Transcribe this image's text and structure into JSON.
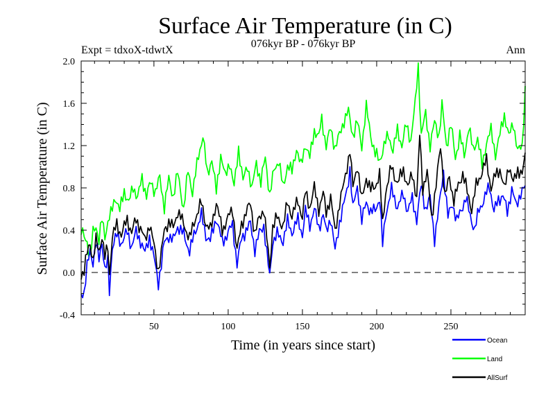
{
  "chart_data": {
    "type": "line",
    "title": "Surface Air Temperature (in C)",
    "subtitle": "076kyr BP - 076kyr BP",
    "expt_label": "Expt = tdxoX-tdwtX",
    "period_label": "Ann",
    "xlabel": "Time (in years since start)",
    "ylabel": "Surface Air Temperature (in C)",
    "xlim": [
      1,
      300
    ],
    "ylim": [
      -0.4,
      2.0
    ],
    "x_ticks": [
      50,
      100,
      150,
      200,
      250
    ],
    "x_tick_labels": [
      "50",
      "100",
      "150",
      "200",
      "250"
    ],
    "y_ticks": [
      -0.4,
      0.0,
      0.4,
      0.8,
      1.2,
      1.6,
      2.0
    ],
    "y_tick_labels": [
      "-0.4",
      "0.0",
      "0.4",
      "0.8",
      "1.2",
      "1.6",
      "2.0"
    ],
    "reference_line": 0.0,
    "legend_position": "bottom-right",
    "series": [
      {
        "name": "Ocean",
        "color": "#0000ff",
        "keypoints": [
          [
            1,
            -0.2
          ],
          [
            3,
            -0.18
          ],
          [
            5,
            0.05
          ],
          [
            7,
            0.2
          ],
          [
            9,
            0.1
          ],
          [
            11,
            0.28
          ],
          [
            13,
            0.12
          ],
          [
            15,
            0.3
          ],
          [
            17,
            0.02
          ],
          [
            19,
            0.1
          ],
          [
            20,
            -0.18
          ],
          [
            22,
            0.25
          ],
          [
            25,
            0.35
          ],
          [
            28,
            0.28
          ],
          [
            32,
            0.38
          ],
          [
            35,
            0.25
          ],
          [
            38,
            0.38
          ],
          [
            41,
            0.3
          ],
          [
            44,
            0.18
          ],
          [
            47,
            0.34
          ],
          [
            50,
            0.14
          ],
          [
            53,
            -0.1
          ],
          [
            55,
            0.08
          ],
          [
            57,
            0.28
          ],
          [
            60,
            0.35
          ],
          [
            63,
            0.3
          ],
          [
            66,
            0.44
          ],
          [
            70,
            0.36
          ],
          [
            74,
            0.2
          ],
          [
            78,
            0.4
          ],
          [
            82,
            0.54
          ],
          [
            85,
            0.35
          ],
          [
            88,
            0.3
          ],
          [
            92,
            0.52
          ],
          [
            96,
            0.28
          ],
          [
            100,
            0.38
          ],
          [
            103,
            0.45
          ],
          [
            106,
            0.08
          ],
          [
            109,
            0.32
          ],
          [
            112,
            0.4
          ],
          [
            115,
            0.46
          ],
          [
            118,
            0.22
          ],
          [
            121,
            0.37
          ],
          [
            124,
            0.45
          ],
          [
            126,
            0.18
          ],
          [
            128,
            -0.04
          ],
          [
            130,
            0.3
          ],
          [
            133,
            0.36
          ],
          [
            137,
            0.3
          ],
          [
            140,
            0.48
          ],
          [
            143,
            0.38
          ],
          [
            147,
            0.5
          ],
          [
            150,
            0.36
          ],
          [
            152,
            0.58
          ],
          [
            155,
            0.45
          ],
          [
            158,
            0.6
          ],
          [
            161,
            0.42
          ],
          [
            164,
            0.55
          ],
          [
            166,
            0.38
          ],
          [
            169,
            0.52
          ],
          [
            172,
            0.2
          ],
          [
            175,
            0.48
          ],
          [
            178,
            0.65
          ],
          [
            180,
            0.78
          ],
          [
            182,
            0.98
          ],
          [
            184,
            0.6
          ],
          [
            187,
            0.82
          ],
          [
            190,
            0.48
          ],
          [
            193,
            0.68
          ],
          [
            196,
            0.56
          ],
          [
            199,
            0.6
          ],
          [
            202,
            0.7
          ],
          [
            204,
            0.26
          ],
          [
            206,
            0.55
          ],
          [
            210,
            0.78
          ],
          [
            214,
            0.62
          ],
          [
            218,
            0.74
          ],
          [
            221,
            0.58
          ],
          [
            224,
            0.7
          ],
          [
            227,
            0.5
          ],
          [
            230,
            0.82
          ],
          [
            233,
            0.6
          ],
          [
            236,
            0.7
          ],
          [
            239,
            0.32
          ],
          [
            242,
            0.62
          ],
          [
            245,
            0.96
          ],
          [
            248,
            0.52
          ],
          [
            251,
            0.66
          ],
          [
            254,
            0.48
          ],
          [
            257,
            0.6
          ],
          [
            260,
            0.7
          ],
          [
            263,
            0.54
          ],
          [
            266,
            0.4
          ],
          [
            269,
            0.6
          ],
          [
            272,
            0.68
          ],
          [
            276,
            0.82
          ],
          [
            279,
            0.58
          ],
          [
            282,
            0.68
          ],
          [
            285,
            0.74
          ],
          [
            288,
            0.56
          ],
          [
            291,
            0.8
          ],
          [
            294,
            0.62
          ],
          [
            297,
            0.76
          ],
          [
            300,
            0.8
          ]
        ]
      },
      {
        "name": "Land",
        "color": "#00ff00",
        "keypoints": [
          [
            1,
            0.38
          ],
          [
            3,
            0.34
          ],
          [
            5,
            0.3
          ],
          [
            7,
            0.12
          ],
          [
            9,
            0.38
          ],
          [
            11,
            0.45
          ],
          [
            13,
            0.3
          ],
          [
            15,
            0.5
          ],
          [
            17,
            0.35
          ],
          [
            19,
            0.48
          ],
          [
            21,
            0.55
          ],
          [
            24,
            0.72
          ],
          [
            27,
            0.58
          ],
          [
            30,
            0.78
          ],
          [
            33,
            0.65
          ],
          [
            36,
            0.82
          ],
          [
            39,
            0.7
          ],
          [
            42,
            0.9
          ],
          [
            45,
            0.72
          ],
          [
            48,
            0.86
          ],
          [
            51,
            0.76
          ],
          [
            54,
            0.9
          ],
          [
            57,
            0.62
          ],
          [
            60,
            0.88
          ],
          [
            63,
            0.72
          ],
          [
            66,
            0.94
          ],
          [
            70,
            0.6
          ],
          [
            73,
            0.96
          ],
          [
            76,
            0.76
          ],
          [
            80,
            1.1
          ],
          [
            83,
            1.3
          ],
          [
            86,
            0.92
          ],
          [
            89,
            1.08
          ],
          [
            92,
            0.76
          ],
          [
            95,
            1.12
          ],
          [
            98,
            0.9
          ],
          [
            101,
            1.05
          ],
          [
            104,
            0.8
          ],
          [
            107,
            1.18
          ],
          [
            110,
            0.86
          ],
          [
            113,
            1.02
          ],
          [
            116,
            0.78
          ],
          [
            119,
            1.05
          ],
          [
            122,
            0.84
          ],
          [
            125,
            1.1
          ],
          [
            128,
            0.72
          ],
          [
            131,
            0.98
          ],
          [
            134,
            1.06
          ],
          [
            137,
            0.8
          ],
          [
            140,
            1.02
          ],
          [
            143,
            0.95
          ],
          [
            146,
            1.18
          ],
          [
            149,
            1.0
          ],
          [
            152,
            1.22
          ],
          [
            155,
            1.08
          ],
          [
            158,
            1.35
          ],
          [
            161,
            1.28
          ],
          [
            163,
            1.45
          ],
          [
            166,
            1.2
          ],
          [
            169,
            1.36
          ],
          [
            172,
            1.18
          ],
          [
            175,
            1.3
          ],
          [
            178,
            1.44
          ],
          [
            181,
            1.52
          ],
          [
            184,
            1.3
          ],
          [
            187,
            1.42
          ],
          [
            190,
            1.2
          ],
          [
            193,
            1.56
          ],
          [
            196,
            1.3
          ],
          [
            199,
            1.12
          ],
          [
            202,
            1.06
          ],
          [
            205,
            1.2
          ],
          [
            208,
            1.3
          ],
          [
            211,
            1.15
          ],
          [
            214,
            1.35
          ],
          [
            217,
            1.2
          ],
          [
            220,
            1.4
          ],
          [
            223,
            1.25
          ],
          [
            226,
            1.6
          ],
          [
            228,
            1.96
          ],
          [
            230,
            1.3
          ],
          [
            233,
            1.5
          ],
          [
            236,
            1.2
          ],
          [
            239,
            1.42
          ],
          [
            242,
            1.3
          ],
          [
            244,
            1.58
          ],
          [
            247,
            1.2
          ],
          [
            250,
            1.4
          ],
          [
            253,
            1.08
          ],
          [
            256,
            1.3
          ],
          [
            259,
            1.1
          ],
          [
            262,
            1.38
          ],
          [
            265,
            1.15
          ],
          [
            268,
            1.28
          ],
          [
            271,
            1.0
          ],
          [
            274,
            1.24
          ],
          [
            277,
            1.34
          ],
          [
            280,
            1.12
          ],
          [
            283,
            1.3
          ],
          [
            286,
            1.5
          ],
          [
            289,
            1.28
          ],
          [
            292,
            1.42
          ],
          [
            295,
            1.14
          ],
          [
            298,
            1.2
          ],
          [
            300,
            1.74
          ]
        ]
      },
      {
        "name": "AllSurf",
        "color": "#000000",
        "keypoints": [
          [
            1,
            -0.02
          ],
          [
            3,
            0.02
          ],
          [
            5,
            0.18
          ],
          [
            7,
            0.28
          ],
          [
            9,
            0.12
          ],
          [
            11,
            0.3
          ],
          [
            13,
            0.2
          ],
          [
            15,
            0.35
          ],
          [
            17,
            0.14
          ],
          [
            19,
            0.24
          ],
          [
            20,
            -0.02
          ],
          [
            22,
            0.34
          ],
          [
            25,
            0.45
          ],
          [
            28,
            0.36
          ],
          [
            32,
            0.5
          ],
          [
            35,
            0.38
          ],
          [
            38,
            0.5
          ],
          [
            41,
            0.42
          ],
          [
            44,
            0.3
          ],
          [
            47,
            0.46
          ],
          [
            50,
            0.26
          ],
          [
            53,
            0.02
          ],
          [
            55,
            0.18
          ],
          [
            57,
            0.4
          ],
          [
            60,
            0.48
          ],
          [
            63,
            0.42
          ],
          [
            66,
            0.58
          ],
          [
            70,
            0.46
          ],
          [
            74,
            0.32
          ],
          [
            78,
            0.52
          ],
          [
            82,
            0.66
          ],
          [
            85,
            0.46
          ],
          [
            88,
            0.4
          ],
          [
            92,
            0.66
          ],
          [
            96,
            0.4
          ],
          [
            100,
            0.52
          ],
          [
            103,
            0.6
          ],
          [
            106,
            0.2
          ],
          [
            109,
            0.46
          ],
          [
            112,
            0.56
          ],
          [
            115,
            0.66
          ],
          [
            118,
            0.36
          ],
          [
            121,
            0.52
          ],
          [
            124,
            0.6
          ],
          [
            126,
            0.32
          ],
          [
            128,
            0.05
          ],
          [
            130,
            0.44
          ],
          [
            133,
            0.52
          ],
          [
            137,
            0.44
          ],
          [
            140,
            0.66
          ],
          [
            143,
            0.54
          ],
          [
            147,
            0.68
          ],
          [
            150,
            0.52
          ],
          [
            152,
            0.76
          ],
          [
            155,
            0.62
          ],
          [
            158,
            0.8
          ],
          [
            161,
            0.6
          ],
          [
            164,
            0.75
          ],
          [
            166,
            0.56
          ],
          [
            169,
            0.72
          ],
          [
            172,
            0.38
          ],
          [
            175,
            0.66
          ],
          [
            178,
            0.84
          ],
          [
            180,
            1.0
          ],
          [
            182,
            1.16
          ],
          [
            184,
            0.8
          ],
          [
            187,
            1.02
          ],
          [
            190,
            0.68
          ],
          [
            193,
            0.9
          ],
          [
            196,
            0.78
          ],
          [
            199,
            0.82
          ],
          [
            202,
            0.92
          ],
          [
            204,
            0.46
          ],
          [
            206,
            0.76
          ],
          [
            210,
            1.0
          ],
          [
            214,
            0.84
          ],
          [
            218,
            0.98
          ],
          [
            221,
            0.8
          ],
          [
            224,
            0.94
          ],
          [
            227,
            0.7
          ],
          [
            229,
            1.3
          ],
          [
            231,
            0.8
          ],
          [
            234,
            0.94
          ],
          [
            237,
            0.52
          ],
          [
            240,
            0.82
          ],
          [
            243,
            1.2
          ],
          [
            246,
            0.72
          ],
          [
            249,
            0.9
          ],
          [
            252,
            0.68
          ],
          [
            255,
            0.82
          ],
          [
            258,
            0.94
          ],
          [
            261,
            0.76
          ],
          [
            264,
            0.6
          ],
          [
            267,
            0.82
          ],
          [
            270,
            0.92
          ],
          [
            274,
            1.06
          ],
          [
            277,
            0.8
          ],
          [
            280,
            0.92
          ],
          [
            283,
            0.98
          ],
          [
            286,
            0.78
          ],
          [
            289,
            1.02
          ],
          [
            292,
            0.84
          ],
          [
            295,
            0.98
          ],
          [
            298,
            0.92
          ],
          [
            300,
            1.1
          ]
        ]
      }
    ]
  }
}
